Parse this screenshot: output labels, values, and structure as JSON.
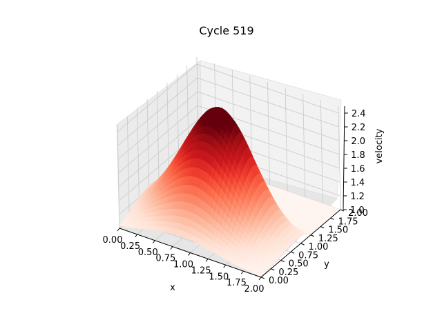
{
  "chart_data": {
    "type": "surface3d",
    "title": "Cycle 519",
    "xlabel": "x",
    "ylabel": "y",
    "zlabel": "velocity",
    "xlim": [
      0,
      2
    ],
    "ylim": [
      0,
      2
    ],
    "zlim": [
      1.0,
      2.5
    ],
    "xticks": [
      "0.00",
      "0.25",
      "0.50",
      "0.75",
      "1.00",
      "1.25",
      "1.50",
      "1.75",
      "2.00"
    ],
    "yticks": [
      "0.00",
      "0.25",
      "0.50",
      "0.75",
      "1.00",
      "1.25",
      "1.50",
      "1.75",
      "2.00"
    ],
    "zticks": [
      "1.0",
      "1.2",
      "1.4",
      "1.6",
      "1.8",
      "2.0",
      "2.2",
      "2.4"
    ],
    "colormap": "Reds",
    "colors": {
      "pane": "#f2f2f2",
      "grid": "#c8c8c8",
      "peak": "#67000d",
      "base": "#fff5f0"
    },
    "grid": true,
    "surface": {
      "baseline": 1.0,
      "peak": 2.45,
      "peak_location": [
        0.95,
        1.1
      ],
      "spread": [
        0.45,
        0.45
      ],
      "wave_front_y": 1.15
    }
  }
}
